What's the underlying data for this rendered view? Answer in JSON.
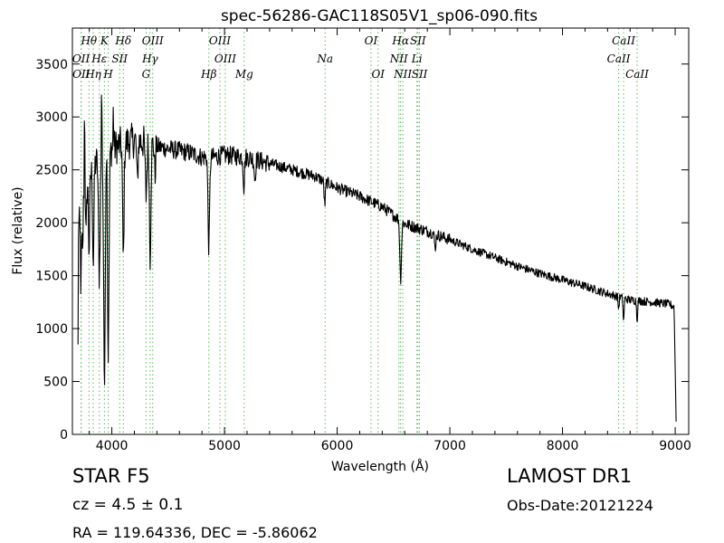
{
  "chart_data": {
    "type": "line",
    "title": "spec-56286-GAC118S05V1_sp06-090.fits",
    "xlabel": "Wavelength (Å)",
    "ylabel": "Flux (relative)",
    "xlim": [
      3650,
      9120
    ],
    "ylim": [
      0,
      3840
    ],
    "xticks": [
      4000,
      5000,
      6000,
      7000,
      8000,
      9000
    ],
    "yticks": [
      0,
      500,
      1000,
      1500,
      2000,
      2500,
      3000,
      3500
    ],
    "grid": false,
    "line_color": "#000000",
    "marker_color": "#5cb85c",
    "spectral_lines": [
      {
        "label": "Hθ",
        "x": 3797,
        "row": 0
      },
      {
        "label": "K",
        "x": 3934,
        "row": 0
      },
      {
        "label": "Hδ",
        "x": 4102,
        "row": 0
      },
      {
        "label": "OIII",
        "x": 4363,
        "row": 0
      },
      {
        "label": "OIII",
        "x": 4959,
        "row": 0
      },
      {
        "label": "OI",
        "x": 6300,
        "row": 0
      },
      {
        "label": "Hα",
        "x": 6563,
        "row": 0
      },
      {
        "label": "SII",
        "x": 6717,
        "row": 0
      },
      {
        "label": "CaII",
        "x": 8542,
        "row": 0
      },
      {
        "label": "OII",
        "x": 3727,
        "row": 1
      },
      {
        "label": "Hε",
        "x": 3889,
        "row": 1
      },
      {
        "label": "SII",
        "x": 4070,
        "row": 1
      },
      {
        "label": "Hγ",
        "x": 4340,
        "row": 1
      },
      {
        "label": "OIII",
        "x": 5007,
        "row": 1
      },
      {
        "label": "Na",
        "x": 5893,
        "row": 1
      },
      {
        "label": "NII",
        "x": 6548,
        "row": 1
      },
      {
        "label": "Li",
        "x": 6708,
        "row": 1
      },
      {
        "label": "CaII",
        "x": 8498,
        "row": 1
      },
      {
        "label": "OII",
        "x": 3729,
        "row": 2
      },
      {
        "label": "Hη",
        "x": 3835,
        "row": 2
      },
      {
        "label": "H",
        "x": 3968,
        "row": 2
      },
      {
        "label": "G",
        "x": 4304,
        "row": 2
      },
      {
        "label": "Hβ",
        "x": 4861,
        "row": 2
      },
      {
        "label": "Mg",
        "x": 5175,
        "row": 2
      },
      {
        "label": "OI",
        "x": 6363,
        "row": 2
      },
      {
        "label": "NII",
        "x": 6583,
        "row": 2
      },
      {
        "label": "SII",
        "x": 6731,
        "row": 2
      },
      {
        "label": "CaII",
        "x": 8662,
        "row": 2
      }
    ],
    "continuum": [
      [
        3700,
        1900
      ],
      [
        3750,
        2250
      ],
      [
        3800,
        2450
      ],
      [
        3850,
        2550
      ],
      [
        3900,
        2620
      ],
      [
        4000,
        2700
      ],
      [
        4100,
        2750
      ],
      [
        4200,
        2780
      ],
      [
        4300,
        2760
      ],
      [
        4400,
        2720
      ],
      [
        4500,
        2700
      ],
      [
        4600,
        2680
      ],
      [
        4700,
        2660
      ],
      [
        4800,
        2620
      ],
      [
        4900,
        2620
      ],
      [
        5000,
        2640
      ],
      [
        5200,
        2620
      ],
      [
        5400,
        2560
      ],
      [
        5600,
        2500
      ],
      [
        5800,
        2440
      ],
      [
        6000,
        2330
      ],
      [
        6200,
        2250
      ],
      [
        6400,
        2150
      ],
      [
        6600,
        1990
      ],
      [
        6800,
        1920
      ],
      [
        7000,
        1840
      ],
      [
        7200,
        1750
      ],
      [
        7400,
        1670
      ],
      [
        7600,
        1590
      ],
      [
        7800,
        1520
      ],
      [
        8000,
        1460
      ],
      [
        8200,
        1400
      ],
      [
        8400,
        1330
      ],
      [
        8600,
        1270
      ],
      [
        8800,
        1250
      ],
      [
        8950,
        1230
      ],
      [
        9000,
        1200
      ]
    ],
    "absorption_dips": [
      {
        "x": 3726,
        "depth": 700,
        "width": 6
      },
      {
        "x": 3740,
        "depth": 500,
        "width": 6
      },
      {
        "x": 3771,
        "depth": 500,
        "width": 6
      },
      {
        "x": 3798,
        "depth": 700,
        "width": 8
      },
      {
        "x": 3835,
        "depth": 900,
        "width": 8
      },
      {
        "x": 3889,
        "depth": 1100,
        "width": 10
      },
      {
        "x": 3934,
        "depth": 2100,
        "width": 10
      },
      {
        "x": 3968,
        "depth": 1900,
        "width": 10
      },
      {
        "x": 4102,
        "depth": 1100,
        "width": 9
      },
      {
        "x": 4226,
        "depth": 400,
        "width": 8
      },
      {
        "x": 4304,
        "depth": 500,
        "width": 10
      },
      {
        "x": 4340,
        "depth": 1050,
        "width": 9
      },
      {
        "x": 4383,
        "depth": 300,
        "width": 6
      },
      {
        "x": 4861,
        "depth": 850,
        "width": 10
      },
      {
        "x": 5172,
        "depth": 280,
        "width": 8
      },
      {
        "x": 5270,
        "depth": 200,
        "width": 8
      },
      {
        "x": 5890,
        "depth": 220,
        "width": 8
      },
      {
        "x": 6563,
        "depth": 550,
        "width": 10
      },
      {
        "x": 6870,
        "depth": 140,
        "width": 8
      },
      {
        "x": 8498,
        "depth": 120,
        "width": 6
      },
      {
        "x": 8542,
        "depth": 230,
        "width": 6
      },
      {
        "x": 8662,
        "depth": 180,
        "width": 6
      }
    ],
    "spikes": [
      {
        "x": 3758,
        "height": 850
      },
      {
        "x": 3910,
        "height": 700
      },
      {
        "x": 3955,
        "height": 500
      },
      {
        "x": 4013,
        "height": 350
      }
    ],
    "end_cutoff": {
      "start": 8990,
      "end": 9010,
      "value": 0
    },
    "start_value": 850
  },
  "info": {
    "object_class": "STAR   F5",
    "survey": "LAMOST DR1",
    "cz_label": "cz = 4.5",
    "cz_pm": "±",
    "cz_err": "0.1",
    "obs_date": "Obs-Date:20121224",
    "radec": "RA = 119.64336, DEC = -5.86062"
  }
}
